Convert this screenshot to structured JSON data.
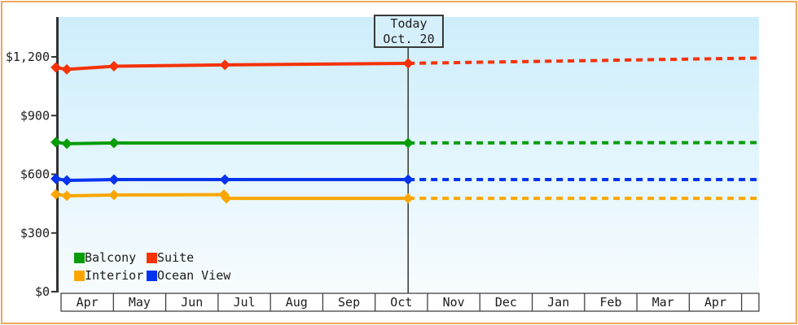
{
  "chart_data": {
    "type": "line",
    "title": "",
    "today": {
      "line1": "Today",
      "line2": "Oct. 20",
      "month_offset_from_apr1": 6.63
    },
    "y_axis": {
      "tick_labels": [
        "$0",
        "$300",
        "$600",
        "$900",
        "$1,200"
      ],
      "tick_values": [
        0,
        300,
        600,
        900,
        1200
      ],
      "ylim": [
        0,
        1400
      ],
      "unit": "$"
    },
    "x_axis": {
      "month_labels": [
        "Apr",
        "May",
        "Jun",
        "Jul",
        "Aug",
        "Sep",
        "Oct",
        "Nov",
        "Dec",
        "Jan",
        "Feb",
        "Mar",
        "Apr"
      ]
    },
    "legend_position": "bottom-left-inside",
    "series": [
      {
        "name": "Balcony",
        "color": "#089c08",
        "points": [
          [
            -0.1,
            764
          ],
          [
            0.11,
            756
          ],
          [
            1.01,
            760
          ],
          [
            6.63,
            760
          ]
        ],
        "projected_price": 762
      },
      {
        "name": "Suite",
        "color": "#f53208",
        "points": [
          [
            -0.1,
            1146
          ],
          [
            0.11,
            1136
          ],
          [
            1.01,
            1152
          ],
          [
            3.13,
            1159
          ],
          [
            6.63,
            1167
          ]
        ],
        "projected_price": 1194
      },
      {
        "name": "Interior",
        "color": "#fba600",
        "points": [
          [
            -0.1,
            498
          ],
          [
            0.11,
            490
          ],
          [
            1.01,
            494
          ],
          [
            3.11,
            496
          ],
          [
            3.16,
            477
          ],
          [
            6.63,
            477
          ]
        ],
        "projected_price": 477
      },
      {
        "name": "Ocean View",
        "color": "#0433f0",
        "points": [
          [
            -0.1,
            577
          ],
          [
            0.11,
            569
          ],
          [
            1.01,
            573
          ],
          [
            3.13,
            573
          ],
          [
            6.63,
            573
          ]
        ],
        "projected_price": 573
      }
    ],
    "style": {
      "frame_border": "#efa85c",
      "plot_bg_top": "#cdeefc",
      "plot_bg_bottom": "#f7fcfe",
      "axis_color": "#333333",
      "text_color": "#1c1c1c"
    }
  }
}
